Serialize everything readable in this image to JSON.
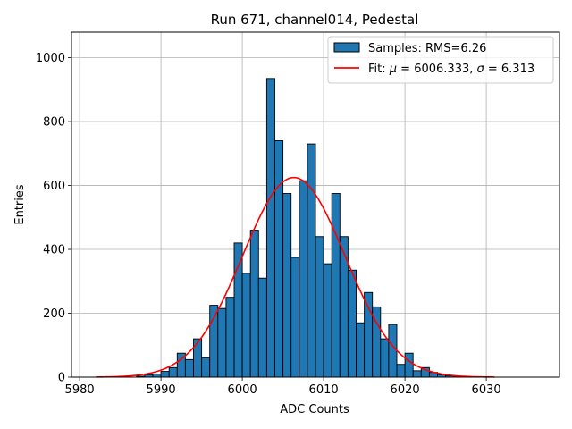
{
  "chart_data": {
    "type": "bar",
    "title": "Run 671, channel014, Pedestal",
    "xlabel": "ADC Counts",
    "ylabel": "Entries",
    "xlim": [
      5979,
      6039
    ],
    "ylim": [
      0,
      1080
    ],
    "xticks": [
      5980,
      5990,
      6000,
      6010,
      6020,
      6030
    ],
    "yticks": [
      0,
      200,
      400,
      600,
      800,
      1000
    ],
    "grid": true,
    "legend_position": "top-right",
    "bin_width": 1,
    "bars_color": "#1f77b4",
    "bars_edge_color": "#000000",
    "fit_color": "#ff0000",
    "histogram": {
      "name": "Samples: RMS=6.26",
      "bin_left_edges": [
        5987,
        5988,
        5989,
        5990,
        5991,
        5992,
        5993,
        5994,
        5995,
        5996,
        5997,
        5998,
        5999,
        6000,
        6001,
        6002,
        6003,
        6004,
        6005,
        6006,
        6007,
        6008,
        6009,
        6010,
        6011,
        6012,
        6013,
        6014,
        6015,
        6016,
        6017,
        6018,
        6019,
        6020,
        6021,
        6022,
        6023,
        6024,
        6025,
        6026
      ],
      "counts": [
        3,
        8,
        10,
        18,
        30,
        75,
        55,
        120,
        60,
        225,
        215,
        250,
        420,
        325,
        460,
        310,
        935,
        740,
        575,
        375,
        615,
        730,
        440,
        355,
        575,
        440,
        335,
        170,
        265,
        220,
        120,
        165,
        40,
        75,
        20,
        30,
        15,
        8,
        4,
        2
      ]
    },
    "fit": {
      "name": "Fit: μ = 6006.333, σ = 6.313",
      "name_prefix": "Fit: ",
      "mu_symbol": "μ",
      "mu_value": " = 6006.333, ",
      "sigma_symbol": "σ",
      "sigma_value": " = 6.313",
      "mu": 6006.333,
      "sigma": 6.313,
      "amplitude": 625,
      "x_range": [
        5982,
        6031
      ]
    }
  }
}
